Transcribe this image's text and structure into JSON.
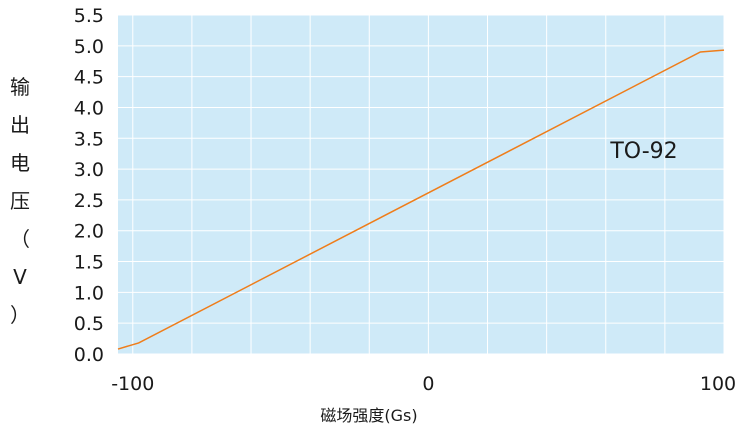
{
  "chart_data": {
    "type": "line",
    "title": "",
    "xlabel": "磁场强度(Gs)",
    "ylabel": "输出电压（V）",
    "xlim": [
      -105,
      100
    ],
    "ylim": [
      0,
      5.5
    ],
    "x_ticks": [
      "-100",
      "0",
      "100"
    ],
    "y_ticks": [
      "0.0",
      "0.5",
      "1.0",
      "1.5",
      "2.0",
      "2.5",
      "3.0",
      "3.5",
      "4.0",
      "4.5",
      "5.0",
      "5.5"
    ],
    "grid": true,
    "annotation": "TO-92",
    "series": [
      {
        "color": "#ef7d1a",
        "x": [
          -105,
          -98,
          92,
          100
        ],
        "y": [
          0.08,
          0.18,
          4.9,
          4.93
        ]
      }
    ]
  },
  "colors": {
    "plot_background": "#cfeaf8",
    "grid": "#ffffff",
    "line": "#ef7d1a"
  }
}
